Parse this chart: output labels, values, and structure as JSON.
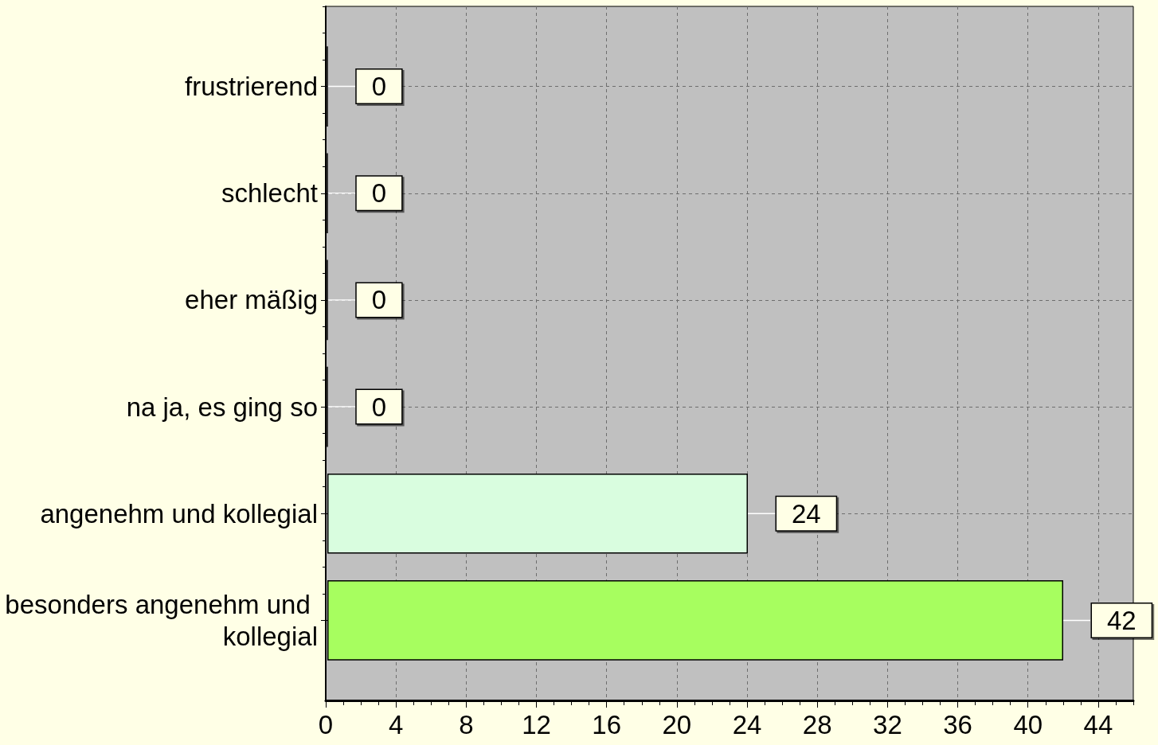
{
  "chart_data": {
    "type": "bar",
    "orientation": "horizontal",
    "categories": [
      "frustrierend",
      "schlecht",
      "eher mäßig",
      "na ja, es ging so",
      "angenehm und kollegial",
      "besonders angenehm und kollegial"
    ],
    "values": [
      0,
      0,
      0,
      0,
      24,
      42
    ],
    "colors": [
      null,
      null,
      null,
      null,
      "#d9fddf",
      "#a7fe5f"
    ],
    "xlim": [
      0,
      46
    ],
    "xticks": [
      0,
      {
        "value": 1,
        "label": null
      },
      {
        "value": 2,
        "label": null
      },
      {
        "value": 3,
        "label": null
      },
      4,
      {
        "value": 5,
        "label": null
      },
      {
        "value": 6,
        "label": null
      },
      {
        "value": 7,
        "label": null
      },
      8,
      {
        "value": 9,
        "label": null
      },
      {
        "value": 10,
        "label": null
      },
      {
        "value": 11,
        "label": null
      },
      12,
      {
        "value": 13,
        "label": null
      },
      {
        "value": 14,
        "label": null
      },
      {
        "value": 15,
        "label": null
      },
      16,
      {
        "value": 17,
        "label": null
      },
      {
        "value": 18,
        "label": null
      },
      {
        "value": 19,
        "label": null
      },
      20,
      {
        "value": 21,
        "label": null
      },
      {
        "value": 22,
        "label": null
      },
      {
        "value": 23,
        "label": null
      },
      24,
      {
        "value": 25,
        "label": null
      },
      {
        "value": 26,
        "label": null
      },
      {
        "value": 27,
        "label": null
      },
      28,
      {
        "value": 29,
        "label": null
      },
      {
        "value": 30,
        "label": null
      },
      {
        "value": 31,
        "label": null
      },
      32,
      {
        "value": 33,
        "label": null
      },
      {
        "value": 34,
        "label": null
      },
      {
        "value": 35,
        "label": null
      },
      36,
      {
        "value": 37,
        "label": null
      },
      {
        "value": 38,
        "label": null
      },
      {
        "value": 39,
        "label": null
      },
      40,
      {
        "value": 41,
        "label": null
      },
      {
        "value": 42,
        "label": null
      },
      {
        "value": 43,
        "label": null
      },
      44,
      {
        "value": 45,
        "label": null
      },
      {
        "value": 46,
        "label": null
      }
    ],
    "grid": true,
    "data_labels": true
  }
}
